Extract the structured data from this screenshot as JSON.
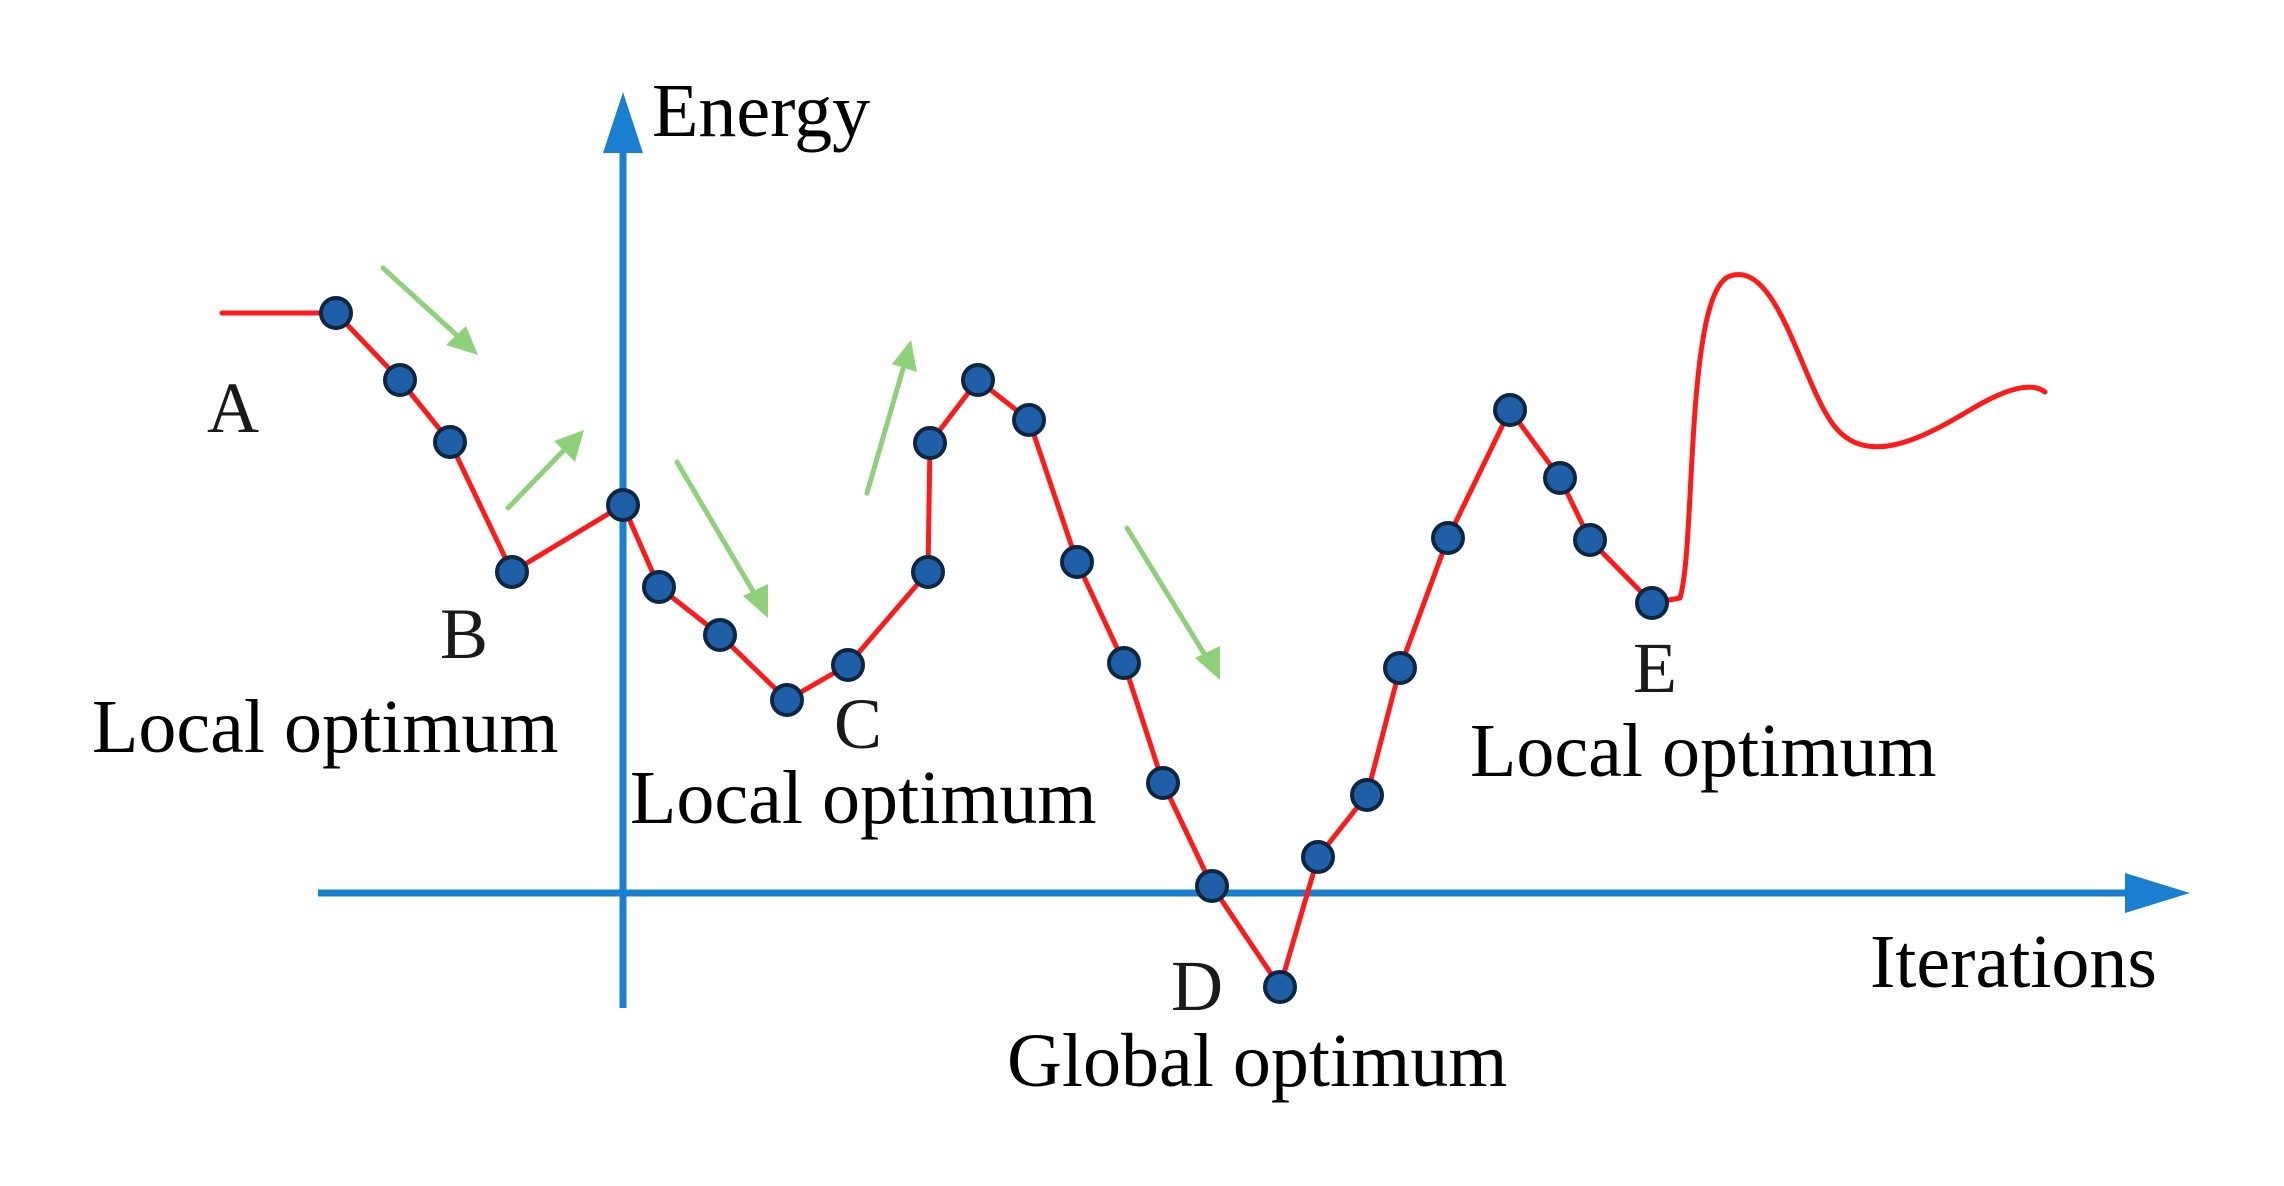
{
  "axes": {
    "y_title": "Energy",
    "x_title": "Iterations"
  },
  "points": {
    "a": "A",
    "b": "B",
    "c": "C",
    "d": "D",
    "e": "E"
  },
  "labels": {
    "b": "Local optimum",
    "c": "Local optimum",
    "d": "Global optimum",
    "e": "Local optimum"
  },
  "colors": {
    "axis": "#1a7fd1",
    "curve": "#ff1a1a",
    "node": "#1f5fa8",
    "hint_arrow": "#8fd07a"
  }
}
